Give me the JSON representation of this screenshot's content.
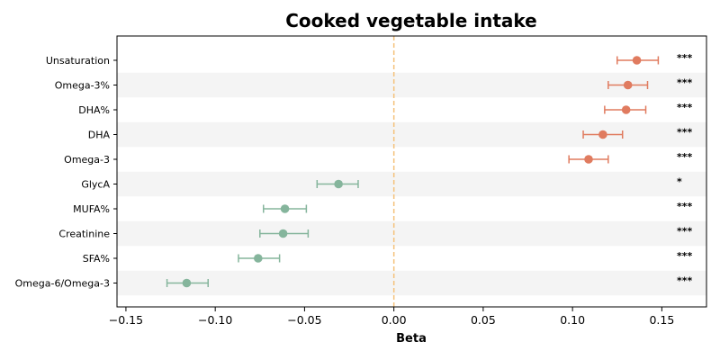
{
  "chart_data": {
    "type": "forest",
    "title": "Cooked vegetable intake",
    "xlabel": "Beta",
    "xlim": [
      -0.155,
      0.175
    ],
    "xticks": [
      -0.15,
      -0.1,
      -0.05,
      0.0,
      0.05,
      0.1,
      0.15
    ],
    "xtick_labels": [
      "−0.15",
      "−0.10",
      "−0.05",
      "0.00",
      "0.05",
      "0.10",
      "0.15"
    ],
    "reference_line": 0.0,
    "reference_color": "#f5c27a",
    "positive_color": "#e07b5f",
    "negative_color": "#85b59c",
    "stripe_color": "#f4f4f4",
    "rows": [
      {
        "label": "Unsaturation",
        "beta": 0.136,
        "lo": 0.125,
        "hi": 0.148,
        "sig": "***"
      },
      {
        "label": "Omega-3%",
        "beta": 0.131,
        "lo": 0.12,
        "hi": 0.142,
        "sig": "***"
      },
      {
        "label": "DHA%",
        "beta": 0.13,
        "lo": 0.118,
        "hi": 0.141,
        "sig": "***"
      },
      {
        "label": "DHA",
        "beta": 0.117,
        "lo": 0.106,
        "hi": 0.128,
        "sig": "***"
      },
      {
        "label": "Omega-3",
        "beta": 0.109,
        "lo": 0.098,
        "hi": 0.12,
        "sig": "***"
      },
      {
        "label": "GlycA",
        "beta": -0.031,
        "lo": -0.043,
        "hi": -0.02,
        "sig": "*"
      },
      {
        "label": "MUFA%",
        "beta": -0.061,
        "lo": -0.073,
        "hi": -0.049,
        "sig": "***"
      },
      {
        "label": "Creatinine",
        "beta": -0.062,
        "lo": -0.075,
        "hi": -0.048,
        "sig": "***"
      },
      {
        "label": "SFA%",
        "beta": -0.076,
        "lo": -0.087,
        "hi": -0.064,
        "sig": "***"
      },
      {
        "label": "Omega-6/Omega-3",
        "beta": -0.116,
        "lo": -0.127,
        "hi": -0.104,
        "sig": "***"
      }
    ]
  }
}
